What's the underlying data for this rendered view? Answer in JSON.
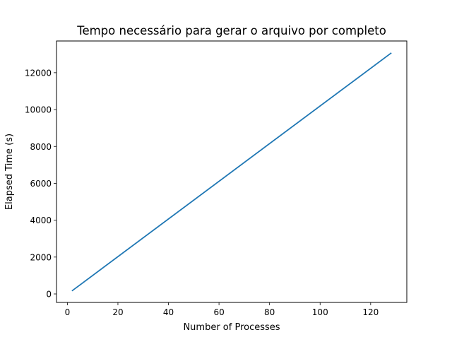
{
  "chart_data": {
    "type": "line",
    "title": "Tempo necessário para gerar o arquivo por completo",
    "xlabel": "Number of Processes",
    "ylabel": "Elapsed Time (s)",
    "xlim": [
      -4.3,
      134.3
    ],
    "ylim": [
      -460,
      13720
    ],
    "xticks": [
      0,
      20,
      40,
      60,
      80,
      100,
      120
    ],
    "yticks": [
      0,
      2000,
      4000,
      6000,
      8000,
      10000,
      12000
    ],
    "grid": false,
    "series": [
      {
        "color": "#1f77b4",
        "x": [
          2,
          128
        ],
        "y": [
          185,
          13055
        ]
      }
    ]
  }
}
